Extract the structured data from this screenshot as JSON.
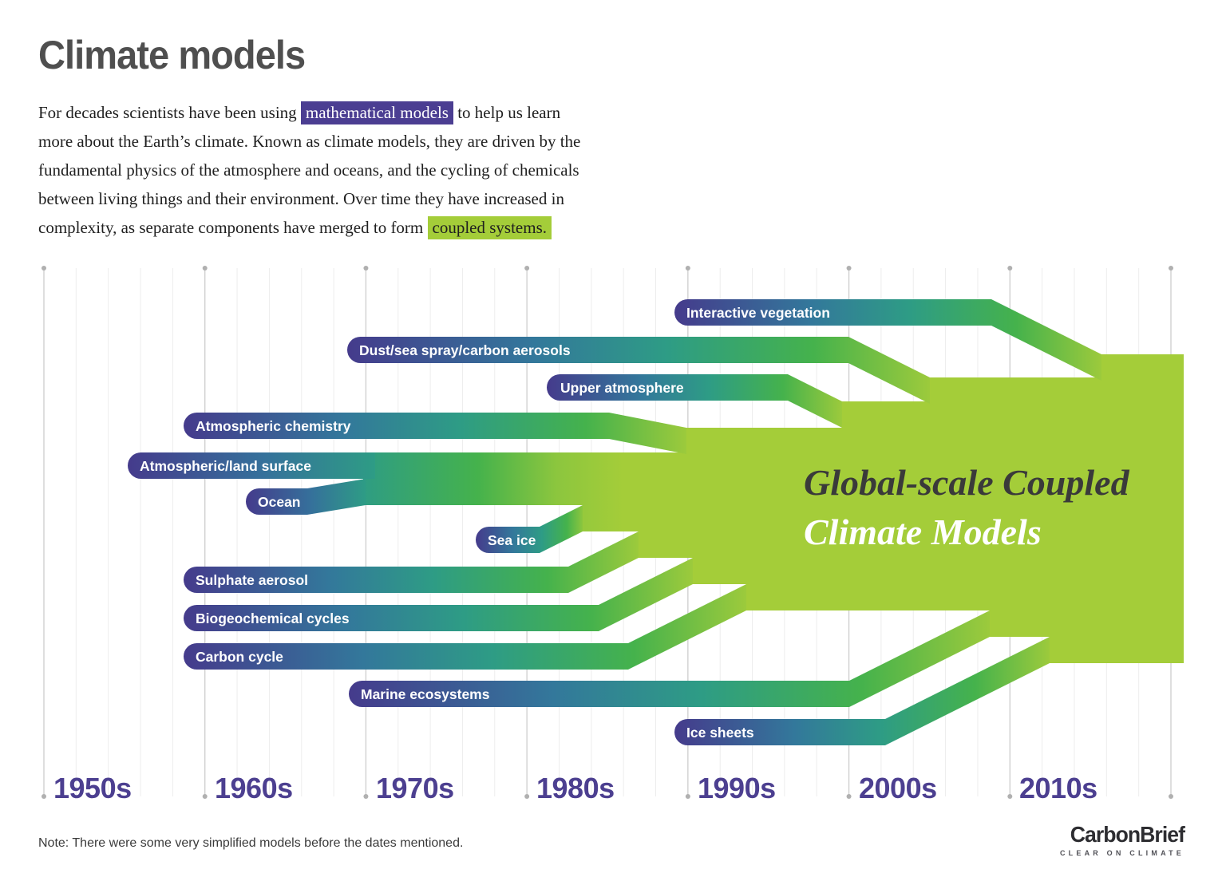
{
  "page": {
    "title": "Climate models",
    "note": "Note: There were some very simplified models before the dates mentioned."
  },
  "intro": {
    "lines": [
      {
        "segments": [
          {
            "text": "For decades scientists have been using ",
            "style": "plain"
          },
          {
            "text": "mathematical models",
            "style": "highlight-purple"
          },
          {
            "text": " to help us learn",
            "style": "plain"
          }
        ]
      },
      {
        "segments": [
          {
            "text": "more about the Earth’s climate. Known as climate models, they are driven by the",
            "style": "plain"
          }
        ]
      },
      {
        "segments": [
          {
            "text": "fundamental physics of the atmosphere and oceans, and the cycling of chemicals",
            "style": "plain"
          }
        ]
      },
      {
        "segments": [
          {
            "text": "between living things and their environment. Over time they have increased in",
            "style": "plain"
          }
        ]
      },
      {
        "segments": [
          {
            "text": "complexity, as separate components have merged to form ",
            "style": "plain"
          },
          {
            "text": "coupled systems.",
            "style": "highlight-green"
          }
        ]
      }
    ]
  },
  "timeline": {
    "decades": [
      "1950s",
      "1960s",
      "1970s",
      "1980s",
      "1990s",
      "2000s",
      "2010s"
    ]
  },
  "bands": [
    {
      "label": "Interactive vegetation"
    },
    {
      "label": "Dust/sea spray/carbon aerosols"
    },
    {
      "label": "Upper atmosphere"
    },
    {
      "label": "Atmospheric chemistry"
    },
    {
      "label": "Atmospheric/land surface"
    },
    {
      "label": "Ocean"
    },
    {
      "label": "Sea ice"
    },
    {
      "label": "Sulphate aerosol"
    },
    {
      "label": "Biogeochemical cycles"
    },
    {
      "label": "Carbon cycle"
    },
    {
      "label": "Marine ecosystems"
    },
    {
      "label": "Ice sheets"
    }
  ],
  "block": {
    "line1": "Global-scale Coupled",
    "line2": "Climate Models"
  },
  "branding": {
    "wordmark": "CarbonBrief",
    "tagline": "CLEAR ON CLIMATE"
  },
  "colors": {
    "band_gradient": [
      "#453B8C",
      "#33789B",
      "#2E9C85",
      "#45B24C",
      "#9CCA3C"
    ],
    "coupled_block_green": "#A4CD39",
    "highlight_purple": "#4B3E92",
    "highlight_green": "#A4CD39",
    "decade_label_purple": "#4C3F90",
    "title_gray": "#4F4F4F",
    "grid_major": "#CDCDCD",
    "grid_minor": "#EDEDED"
  },
  "chart_data": {
    "type": "timeline-merge-diagram",
    "title": "Climate models",
    "x_axis": {
      "labels": [
        "1950s",
        "1960s",
        "1970s",
        "1980s",
        "1990s",
        "2000s",
        "2010s"
      ],
      "range": [
        "1950s",
        "2020s"
      ]
    },
    "merged_block_label": "Global-scale Coupled Climate Models",
    "legend_position": "labels-on-bands",
    "grid": "vertical, 4 minor lines per decade, dots at major line ends",
    "bands": [
      {
        "label": "Atmospheric/land surface",
        "starts_about": "mid 1950s",
        "merges_into_coupled_about": "around 1970"
      },
      {
        "label": "Ocean",
        "starts_about": "early 1960s",
        "merges_into_coupled_about": "around 1970"
      },
      {
        "label": "Sea ice",
        "starts_about": "mid-to-late 1970s",
        "merges_into_coupled_about": "early 1980s"
      },
      {
        "label": "Sulphate aerosol",
        "starts_about": "late 1950s",
        "merges_into_coupled_about": "late 1980s"
      },
      {
        "label": "Atmospheric chemistry",
        "starts_about": "late 1950s",
        "merges_into_coupled_about": "around 1990"
      },
      {
        "label": "Biogeochemical cycles",
        "starts_about": "late 1950s",
        "merges_into_coupled_about": "around 1990"
      },
      {
        "label": "Carbon cycle",
        "starts_about": "late 1950s",
        "merges_into_coupled_about": "mid 1990s"
      },
      {
        "label": "Upper atmosphere",
        "starts_about": "early 1980s",
        "merges_into_coupled_about": "around 2000"
      },
      {
        "label": "Dust/sea spray/carbon aerosols",
        "starts_about": "late 1960s",
        "merges_into_coupled_about": "mid 2000s"
      },
      {
        "label": "Marine ecosystems",
        "starts_about": "late 1960s",
        "merges_into_coupled_about": "late 2000s"
      },
      {
        "label": "Ice sheets",
        "starts_about": "late 1980s",
        "merges_into_coupled_about": "early 2010s"
      },
      {
        "label": "Interactive vegetation",
        "starts_about": "late 1980s",
        "merges_into_coupled_about": "mid 2010s"
      }
    ],
    "note": "Note: There were some very simplified models before the dates mentioned."
  }
}
